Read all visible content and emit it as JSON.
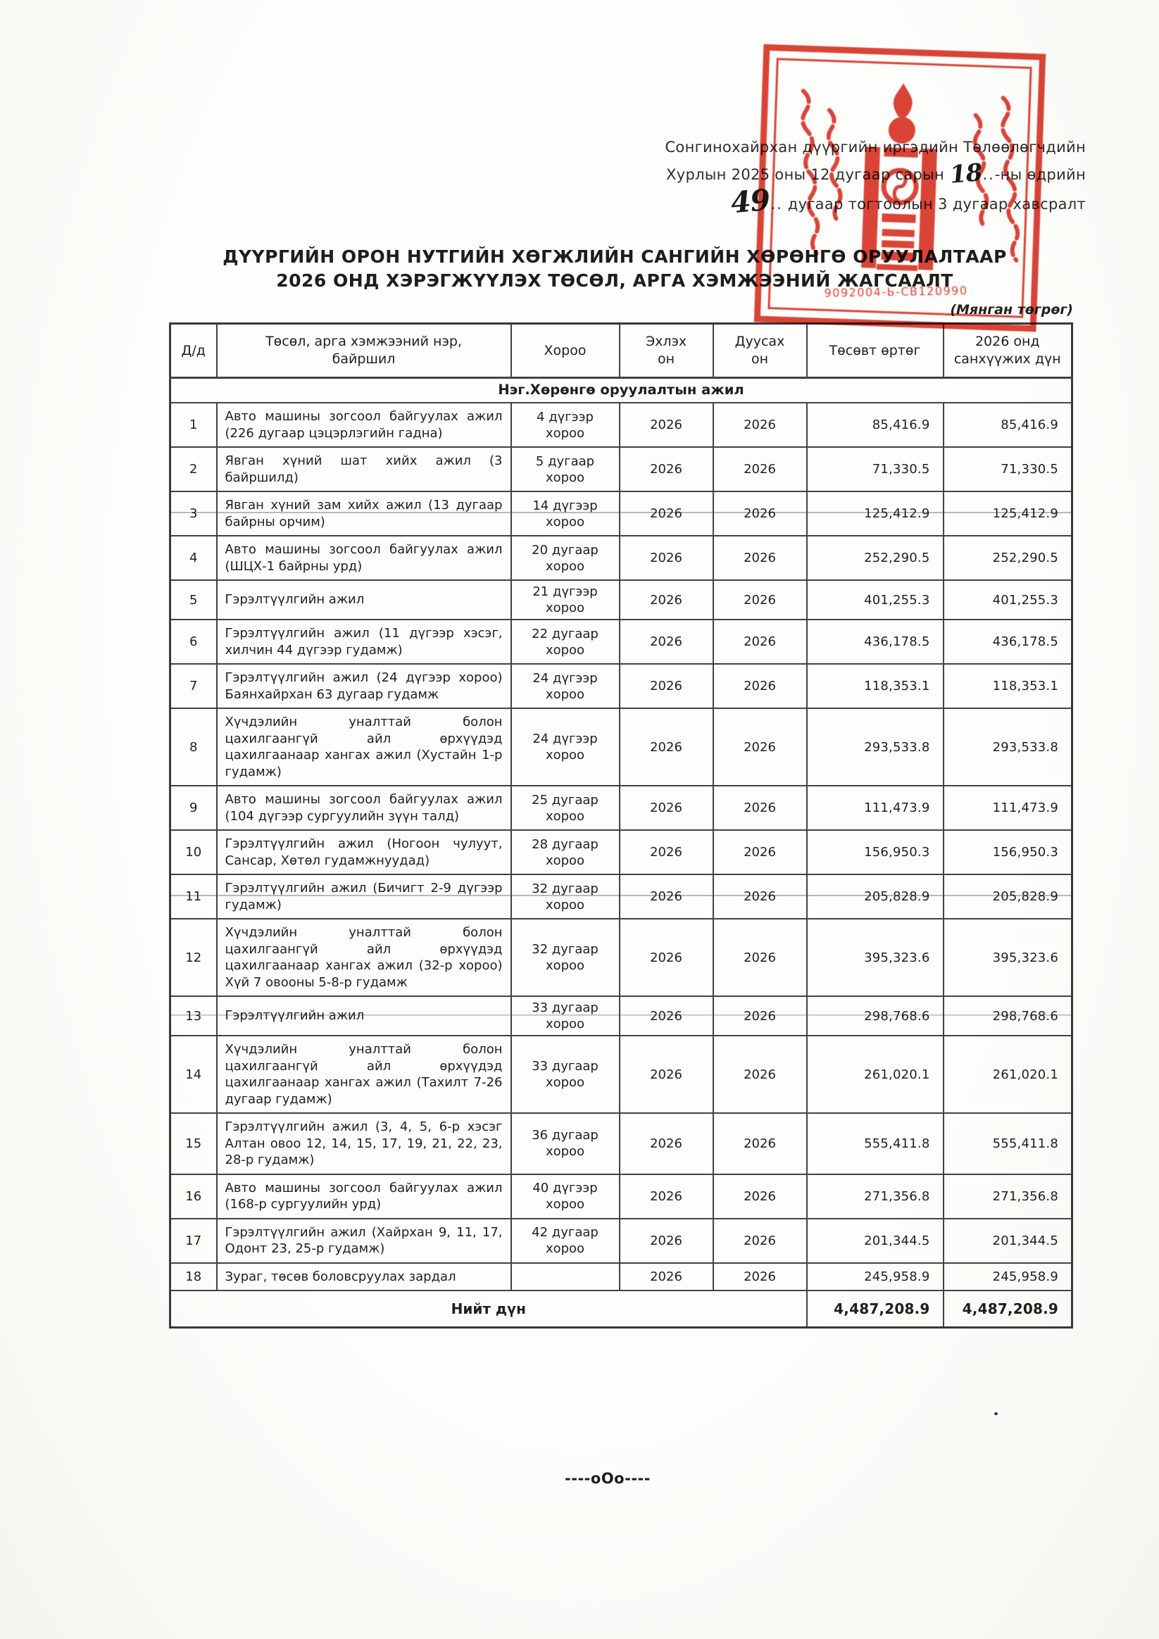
{
  "document": {
    "annotation": {
      "line1": "Сонгинохайрхан дүүргийн иргэдийн Төлөөлөгчдийн",
      "line2_prefix": "Хурлын 2025 оны 12 дугаар сарын",
      "day_handwritten": "18",
      "line2_dots": "..",
      "line2_suffix": "-ны өдрийн",
      "number_handwritten": "49",
      "line3_dots": "..",
      "line3_suffix": " дугаар тогтоолын 3 дугаар хавсралт"
    },
    "title_line1": "ДҮҮРГИЙН ОРОН НУТГИЙН ХӨГЖЛИЙН САНГИЙН ХӨРӨНГӨ ОРУУЛАЛТААР",
    "title_line2": "2026 ОНД ХЭРЭГЖҮҮЛЭХ ТӨСӨЛ, АРГА ХЭМЖЭЭНИЙ ЖАГСААЛТ",
    "unit_note": "(Мянган төгрөг)",
    "footer_mark": "----оОо----"
  },
  "stamp": {
    "color": "#d9382b",
    "number": "9092004-Ь-СВ120990"
  },
  "table": {
    "headers": [
      "Д/д",
      "Төсөл, арга хэмжээний нэр, байршил",
      "Хороо",
      "Эхлэх он",
      "Дуусах он",
      "Төсөвт өртөг",
      "2026 онд санхүүжих дүн"
    ],
    "section_title": "Нэг.Хөрөнгө оруулалтын ажил",
    "rows": [
      {
        "num": "1",
        "name": "Авто машины зогсоол байгуулах ажил (226 дугаар цэцэрлэгийн гадна)",
        "khoroo": "4 дүгээр хороо",
        "start": "2026",
        "end": "2026",
        "budget": "85,416.9",
        "financing": "85,416.9"
      },
      {
        "num": "2",
        "name": "Явган хүний шат хийх ажил (3 байршилд)",
        "khoroo": "5 дугаар хороо",
        "start": "2026",
        "end": "2026",
        "budget": "71,330.5",
        "financing": "71,330.5"
      },
      {
        "num": "3",
        "name": "Явган хүний зам хийх ажил (13 дугаар байрны орчим)",
        "khoroo": "14 дүгээр хороо",
        "start": "2026",
        "end": "2026",
        "budget": "125,412.9",
        "financing": "125,412.9"
      },
      {
        "num": "4",
        "name": "Авто машины зогсоол байгуулах ажил (ШЦХ-1 байрны урд)",
        "khoroo": "20 дугаар хороо",
        "start": "2026",
        "end": "2026",
        "budget": "252,290.5",
        "financing": "252,290.5"
      },
      {
        "num": "5",
        "name": "Гэрэлтүүлгийн ажил",
        "khoroo": "21 дүгээр хороо",
        "start": "2026",
        "end": "2026",
        "budget": "401,255.3",
        "financing": "401,255.3"
      },
      {
        "num": "6",
        "name": "Гэрэлтүүлгийн ажил (11 дүгээр хэсэг, хилчин 44 дүгээр гудамж)",
        "khoroo": "22 дугаар хороо",
        "start": "2026",
        "end": "2026",
        "budget": "436,178.5",
        "financing": "436,178.5"
      },
      {
        "num": "7",
        "name": "Гэрэлтүүлгийн ажил (24 дүгээр хороо) Баянхайрхан 63 дугаар гудамж",
        "khoroo": "24 дүгээр хороо",
        "start": "2026",
        "end": "2026",
        "budget": "118,353.1",
        "financing": "118,353.1"
      },
      {
        "num": "8",
        "name": "Хүчдэлийн уналттай болон цахилгаангүй айл өрхүүдэд цахилгаанаар хангах ажил (Хустайн 1-р гудамж)",
        "khoroo": "24 дүгээр хороо",
        "start": "2026",
        "end": "2026",
        "budget": "293,533.8",
        "financing": "293,533.8"
      },
      {
        "num": "9",
        "name": "Авто машины зогсоол байгуулах ажил (104 дүгээр сургуулийн зүүн талд)",
        "khoroo": "25 дугаар хороо",
        "start": "2026",
        "end": "2026",
        "budget": "111,473.9",
        "financing": "111,473.9"
      },
      {
        "num": "10",
        "name": "Гэрэлтүүлгийн ажил (Ногоон чулуут, Сансар, Хөтөл гудамжнуудад)",
        "khoroo": "28 дугаар хороо",
        "start": "2026",
        "end": "2026",
        "budget": "156,950.3",
        "financing": "156,950.3"
      },
      {
        "num": "11",
        "name": "Гэрэлтүүлгийн ажил (Бичигт 2-9 дүгээр гудамж)",
        "khoroo": "32 дугаар хороо",
        "start": "2026",
        "end": "2026",
        "budget": "205,828.9",
        "financing": "205,828.9"
      },
      {
        "num": "12",
        "name": "Хүчдэлийн уналттай болон цахилгаангүй айл өрхүүдэд цахилгаанаар хангах ажил (32-р хороо) Хүй 7 овооны 5-8-р гудамж",
        "khoroo": "32 дугаар хороо",
        "start": "2026",
        "end": "2026",
        "budget": "395,323.6",
        "financing": "395,323.6"
      },
      {
        "num": "13",
        "name": "Гэрэлтүүлгийн ажил",
        "khoroo": "33 дугаар хороо",
        "start": "2026",
        "end": "2026",
        "budget": "298,768.6",
        "financing": "298,768.6"
      },
      {
        "num": "14",
        "name": "Хүчдэлийн уналттай болон цахилгаангүй айл өрхүүдэд цахилгаанаар хангах ажил (Тахилт 7-26 дугаар гудамж)",
        "khoroo": "33 дугаар хороо",
        "start": "2026",
        "end": "2026",
        "budget": "261,020.1",
        "financing": "261,020.1"
      },
      {
        "num": "15",
        "name": "Гэрэлтүүлгийн ажил (3, 4, 5, 6-р хэсэг Алтан овоо 12, 14, 15, 17, 19, 21, 22, 23, 28-р гудамж)",
        "khoroo": "36 дугаар хороо",
        "start": "2026",
        "end": "2026",
        "budget": "555,411.8",
        "financing": "555,411.8"
      },
      {
        "num": "16",
        "name": "Авто машины зогсоол байгуулах ажил (168-р сургуулийн урд)",
        "khoroo": "40 дүгээр хороо",
        "start": "2026",
        "end": "2026",
        "budget": "271,356.8",
        "financing": "271,356.8"
      },
      {
        "num": "17",
        "name": "Гэрэлтүүлгийн ажил (Хайрхан 9, 11, 17, Одонт 23, 25-р гудамж)",
        "khoroo": "42 дугаар хороо",
        "start": "2026",
        "end": "2026",
        "budget": "201,344.5",
        "financing": "201,344.5"
      },
      {
        "num": "18",
        "name": "Зураг, төсөв боловсруулах зардал",
        "khoroo": "",
        "start": "2026",
        "end": "2026",
        "budget": "245,958.9",
        "financing": "245,958.9"
      }
    ],
    "total": {
      "label": "Нийт дүн",
      "budget": "4,487,208.9",
      "financing": "4,487,208.9"
    }
  }
}
